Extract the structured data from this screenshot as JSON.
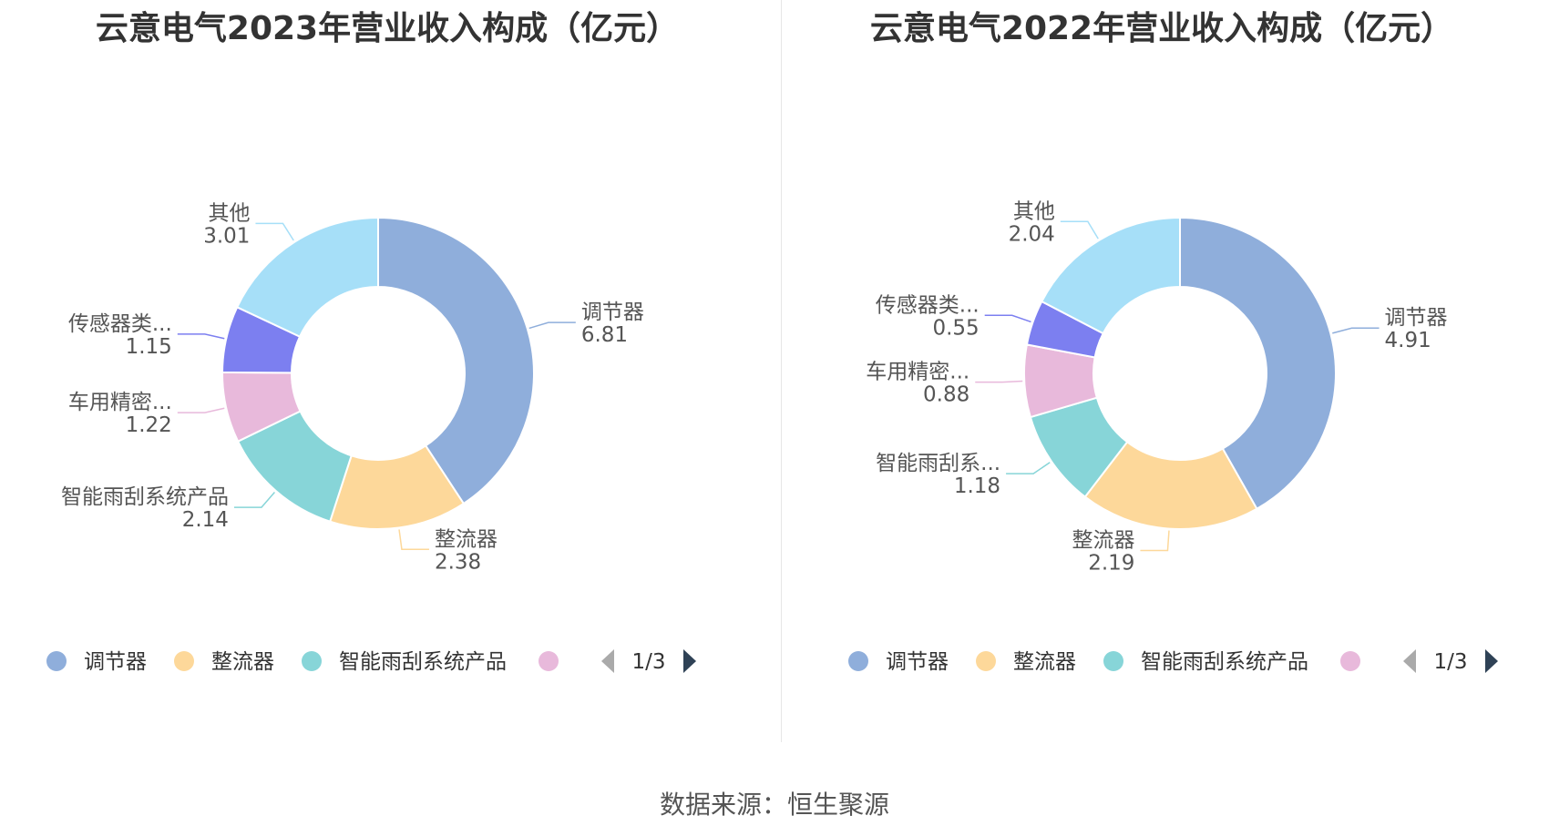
{
  "footer": {
    "source": "数据来源：恒生聚源"
  },
  "colors": [
    "#8faedb",
    "#fdd89a",
    "#87d5d8",
    "#e8b9db",
    "#7c7ff0",
    "#a6dff8"
  ],
  "chart_data": [
    {
      "type": "pie",
      "title": "云意电气2023年营业收入构成（亿元）",
      "categories": [
        "调节器",
        "整流器",
        "智能雨刮系统产品",
        "车用精密...",
        "传感器类...",
        "其他"
      ],
      "values": [
        6.81,
        2.38,
        2.14,
        1.22,
        1.15,
        3.01
      ],
      "value_labels": [
        "6.81",
        "2.38",
        "2.14",
        "1.22",
        "1.15",
        "3.01"
      ],
      "legend": {
        "items": [
          "调节器",
          "整流器",
          "智能雨刮系统产品"
        ],
        "page": "1/3",
        "position": "bottom"
      }
    },
    {
      "type": "pie",
      "title": "云意电气2022年营业收入构成（亿元）",
      "categories": [
        "调节器",
        "整流器",
        "智能雨刮系...",
        "车用精密...",
        "传感器类...",
        "其他"
      ],
      "values": [
        4.91,
        2.19,
        1.18,
        0.88,
        0.55,
        2.04
      ],
      "value_labels": [
        "4.91",
        "2.19",
        "1.18",
        "0.88",
        "0.55",
        "2.04"
      ],
      "legend": {
        "items": [
          "调节器",
          "整流器",
          "智能雨刮系统产品"
        ],
        "page": "1/3",
        "position": "bottom"
      }
    }
  ]
}
